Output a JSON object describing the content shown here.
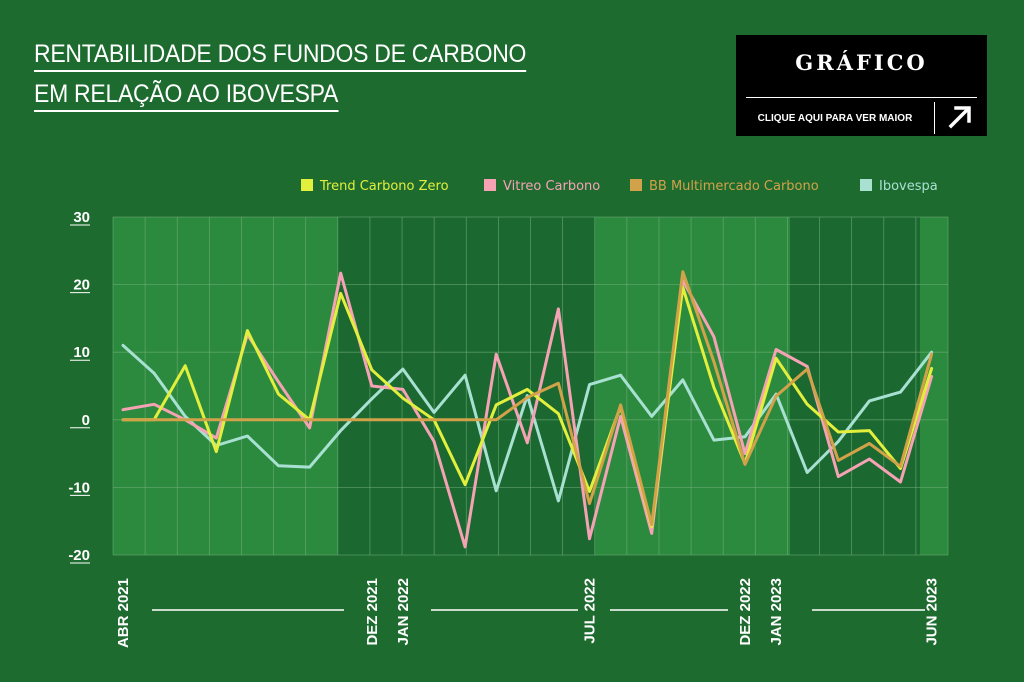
{
  "header": {
    "title_line1": "RENTABILIDADE DOS FUNDOS DE CARBONO",
    "title_line2": "EM RELAÇÃO AO IBOVESPA"
  },
  "badge": {
    "title": "GRÁFICO",
    "link": "CLIQUE AQUI PARA VER MAIOR",
    "icon": "arrow-up-right-icon"
  },
  "colors": {
    "background": "#1e6b30",
    "plot_dark": "#1b6830",
    "plot_light": "#2c8a3e",
    "grid": "#6fae78"
  },
  "chart_data": {
    "type": "line",
    "title": "RENTABILIDADE DOS FUNDOS DE CARBONO EM RELAÇÃO AO IBOVESPA",
    "ylim": [
      -20,
      30
    ],
    "yticks": [
      "30",
      "20",
      "10",
      "0",
      "-10",
      "-20"
    ],
    "grid": true,
    "legend_position": "top-right",
    "x_labels": [
      {
        "label": "ABR 2021",
        "index": 0
      },
      {
        "label": "DEZ 2021",
        "index": 8
      },
      {
        "label": "JAN 2022",
        "index": 9
      },
      {
        "label": "JUL 2022",
        "index": 15
      },
      {
        "label": "DEZ 2022",
        "index": 20
      },
      {
        "label": "JAN 2023",
        "index": 21
      },
      {
        "label": "JUN 2023",
        "index": 26
      }
    ],
    "series": [
      {
        "name": "Trend Carbono Zero",
        "color": "#e2ef3c",
        "points": [
          [
            0,
            0
          ],
          [
            1,
            0
          ],
          [
            2,
            8
          ],
          [
            3,
            -4.7
          ],
          [
            4,
            13.2
          ],
          [
            5,
            3.8
          ],
          [
            6,
            0
          ],
          [
            7,
            18.7
          ],
          [
            8,
            7.4
          ],
          [
            9,
            3.2
          ],
          [
            10,
            0
          ],
          [
            11,
            -9.6
          ],
          [
            12,
            2.2
          ],
          [
            13,
            4.5
          ],
          [
            14,
            0.9
          ],
          [
            15,
            -10.6
          ],
          [
            16,
            2
          ],
          [
            17,
            -15.8
          ],
          [
            18,
            19.6
          ],
          [
            19,
            4.8
          ],
          [
            20,
            -6.5
          ],
          [
            21,
            9.1
          ],
          [
            22,
            2.3
          ],
          [
            23,
            -1.8
          ],
          [
            24,
            -1.6
          ],
          [
            25,
            -7.2
          ],
          [
            26,
            7.6
          ]
        ]
      },
      {
        "name": "Vitreo Carbono",
        "color": "#f5a3b4",
        "points": [
          [
            0,
            1.5
          ],
          [
            1,
            2.3
          ],
          [
            2,
            0
          ],
          [
            3,
            -2.7
          ],
          [
            4,
            12.6
          ],
          [
            5,
            5.6
          ],
          [
            6,
            -1.2
          ],
          [
            7,
            21.7
          ],
          [
            8,
            5
          ],
          [
            9,
            4.5
          ],
          [
            10,
            -3.2
          ],
          [
            11,
            -18.8
          ],
          [
            12,
            9.7
          ],
          [
            13,
            -3.4
          ],
          [
            14,
            16.4
          ],
          [
            15,
            -17.6
          ],
          [
            16,
            0.5
          ],
          [
            17,
            -16.8
          ],
          [
            18,
            20.6
          ],
          [
            19,
            12.3
          ],
          [
            20,
            -5
          ],
          [
            21,
            10.4
          ],
          [
            22,
            7.9
          ],
          [
            23,
            -8.4
          ],
          [
            24,
            -5.8
          ],
          [
            25,
            -9.2
          ],
          [
            26,
            6.4
          ]
        ]
      },
      {
        "name": "BB Multimercado Carbono",
        "color": "#d1a249",
        "points": [
          [
            0,
            0
          ],
          [
            1,
            0
          ],
          [
            2,
            0
          ],
          [
            3,
            0
          ],
          [
            4,
            0
          ],
          [
            5,
            0
          ],
          [
            6,
            0
          ],
          [
            7,
            0
          ],
          [
            8,
            0
          ],
          [
            9,
            0
          ],
          [
            10,
            0
          ],
          [
            11,
            0
          ],
          [
            12,
            0
          ],
          [
            13,
            3.3
          ],
          [
            14,
            5.4
          ],
          [
            15,
            -12.4
          ],
          [
            16,
            2.2
          ],
          [
            17,
            -15.5
          ],
          [
            18,
            21.9
          ],
          [
            19,
            8.6
          ],
          [
            20,
            -6.6
          ],
          [
            21,
            3.5
          ],
          [
            22,
            7.5
          ],
          [
            23,
            -6
          ],
          [
            24,
            -3.5
          ],
          [
            25,
            -6.9
          ],
          [
            26,
            9.7
          ]
        ]
      },
      {
        "name": "Ibovespa",
        "color": "#a8e0d2",
        "points": [
          [
            0,
            11
          ],
          [
            1,
            6.9
          ],
          [
            2,
            0.5
          ],
          [
            3,
            -3.8
          ],
          [
            4,
            -2.4
          ],
          [
            5,
            -6.8
          ],
          [
            6,
            -7
          ],
          [
            7,
            -1.6
          ],
          [
            8,
            3.1
          ],
          [
            9,
            7.5
          ],
          [
            10,
            1.1
          ],
          [
            11,
            6.6
          ],
          [
            12,
            -10.5
          ],
          [
            13,
            3.6
          ],
          [
            14,
            -12
          ],
          [
            15,
            5.2
          ],
          [
            16,
            6.6
          ],
          [
            17,
            0.5
          ],
          [
            18,
            5.9
          ],
          [
            19,
            -3
          ],
          [
            20,
            -2.5
          ],
          [
            21,
            3.8
          ],
          [
            22,
            -7.8
          ],
          [
            23,
            -3.2
          ],
          [
            24,
            2.8
          ],
          [
            25,
            4.1
          ],
          [
            26,
            10
          ]
        ]
      }
    ]
  }
}
